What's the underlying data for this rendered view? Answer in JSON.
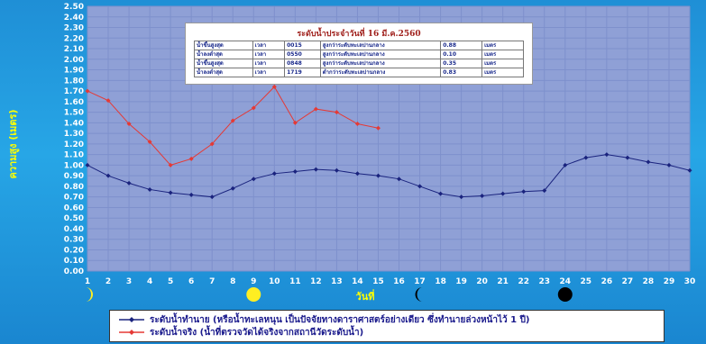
{
  "chart_data": {
    "type": "line",
    "x": [
      1,
      2,
      3,
      4,
      5,
      6,
      7,
      8,
      9,
      10,
      11,
      12,
      13,
      14,
      15,
      16,
      17,
      18,
      19,
      20,
      21,
      22,
      23,
      24,
      25,
      26,
      27,
      28,
      29,
      30
    ],
    "series": [
      {
        "name": "ระดับน้ำทำนาย (หรือน้ำทะเลหนุน เป็นปัจจัยทางดาราศาสตร์อย่างเดียว ซึ่งทำนายล่วงหน้าไว้ 1 ปี)",
        "color": "#1a237e",
        "values": [
          1.0,
          0.9,
          0.83,
          0.77,
          0.74,
          0.72,
          0.7,
          0.78,
          0.87,
          0.92,
          0.94,
          0.96,
          0.95,
          0.92,
          0.9,
          0.87,
          0.8,
          0.73,
          0.7,
          0.71,
          0.73,
          0.75,
          0.76,
          1.0,
          1.07,
          1.1,
          1.07,
          1.03,
          1.0,
          0.95
        ]
      },
      {
        "name": "ระดับน้ำจริง (น้ำที่ตรวจวัดได้จริงจากสถานีวัดระดับน้ำ)",
        "color": "#e53935",
        "values": [
          1.7,
          1.61,
          1.39,
          1.22,
          1.0,
          1.06,
          1.2,
          1.42,
          1.54,
          1.74,
          1.4,
          1.53,
          1.5,
          1.39,
          1.35,
          null,
          null,
          null,
          null,
          null,
          null,
          null,
          null,
          null,
          null,
          null,
          null,
          null,
          null,
          null
        ]
      }
    ],
    "ylim": [
      0.0,
      2.5
    ],
    "yticks": [
      "0.00",
      "0.10",
      "0.20",
      "0.30",
      "0.40",
      "0.50",
      "0.60",
      "0.70",
      "0.80",
      "0.90",
      "1.00",
      "1.10",
      "1.20",
      "1.30",
      "1.40",
      "1.50",
      "1.60",
      "1.70",
      "1.80",
      "1.90",
      "2.00",
      "2.10",
      "2.20",
      "2.30",
      "2.40",
      "2.50"
    ],
    "xticks": [
      "1",
      "2",
      "3",
      "4",
      "5",
      "6",
      "7",
      "8",
      "9",
      "10",
      "11",
      "12",
      "13",
      "14",
      "15",
      "16",
      "17",
      "18",
      "19",
      "20",
      "21",
      "22",
      "23",
      "24",
      "25",
      "26",
      "27",
      "28",
      "29",
      "30"
    ],
    "ylabel": "ความสูง (เมตร)",
    "xlabel": "วันที่",
    "grid": true,
    "background": "#8fa0d6",
    "moon_phases": [
      {
        "day": 1,
        "phase": "first-quarter"
      },
      {
        "day": 9,
        "phase": "full"
      },
      {
        "day": 17,
        "phase": "last-quarter"
      },
      {
        "day": 24,
        "phase": "new"
      }
    ]
  },
  "inset": {
    "title": "ระดับน้ำประจำวันที่ 16 มี.ค.2560",
    "rows": [
      [
        "น้ำขึ้นสูงสุด",
        "เวลา",
        "0015",
        "สูงกว่าระดับทะเลปานกลาง",
        "0.88",
        "เมตร"
      ],
      [
        "น้ำลงต่ำสุด",
        "เวลา",
        "0550",
        "สูงกว่าระดับทะเลปานกลาง",
        "0.10",
        "เมตร"
      ],
      [
        "น้ำขึ้นสูงสุด",
        "เวลา",
        "0848",
        "สูงกว่าระดับทะเลปานกลาง",
        "0.35",
        "เมตร"
      ],
      [
        "น้ำลงต่ำสุด",
        "เวลา",
        "1719",
        "ต่ำกว่าระดับทะเลปานกลาง",
        "0.83",
        "เมตร"
      ]
    ]
  },
  "legend": {
    "predicted": "ระดับน้ำทำนาย (หรือน้ำทะเลหนุน เป็นปัจจัยทางดาราศาสตร์อย่างเดียว ซึ่งทำนายล่วงหน้าไว้ 1 ปี)",
    "actual": "ระดับน้ำจริง (น้ำที่ตรวจวัดได้จริงจากสถานีวัดระดับน้ำ)"
  },
  "colors": {
    "page_background": "#1f8fd6",
    "plot_background": "#8fa0d6",
    "predicted_line": "#1a237e",
    "actual_line": "#e53935",
    "axis_title": "#ffff00",
    "moon": "#ffee22",
    "new_moon": "#000000"
  }
}
